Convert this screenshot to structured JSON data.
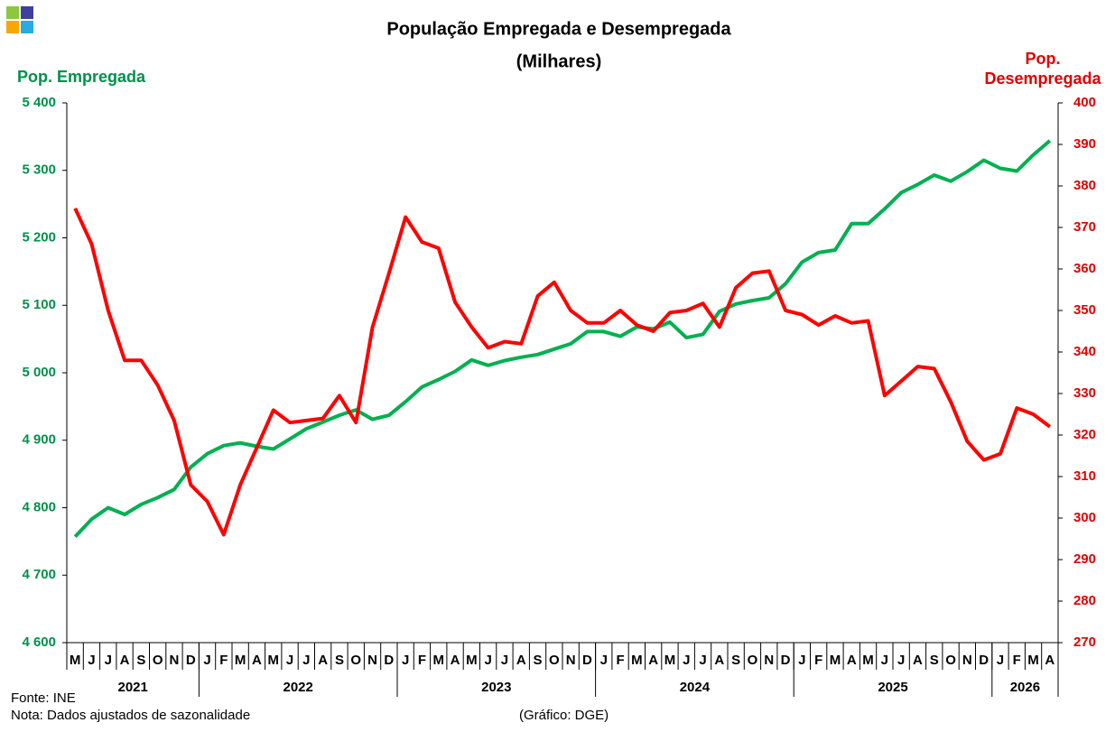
{
  "chart_data": {
    "type": "line",
    "title": "População Empregada e Desempregada",
    "subtitle": "(Milhares)",
    "ylabel": "Pop. Empregada",
    "y2label": "Pop. Desempregada",
    "categories": [
      "M",
      "J",
      "J",
      "A",
      "S",
      "O",
      "N",
      "D",
      "J",
      "F",
      "M",
      "A",
      "M",
      "J",
      "J",
      "A",
      "S",
      "O",
      "N",
      "D",
      "J",
      "F",
      "M",
      "A",
      "M",
      "J",
      "J",
      "A",
      "S",
      "O",
      "N",
      "D",
      "J",
      "F",
      "M",
      "A",
      "M",
      "J",
      "J",
      "A",
      "S",
      "O",
      "N",
      "D",
      "J",
      "F",
      "M",
      "A",
      "M",
      "J",
      "J",
      "A",
      "S",
      "O",
      "N",
      "D",
      "J",
      "F",
      "M",
      "A"
    ],
    "years": [
      "2021",
      "2022",
      "2023",
      "2024",
      "2025",
      "2026"
    ],
    "series": [
      {
        "name": "Pop. Empregada",
        "color": "#00b050",
        "axis": "y",
        "values": [
          4757,
          4783,
          4800,
          4790,
          4805,
          4815,
          4827,
          4860,
          4880,
          4892,
          4896,
          4891,
          4887,
          4902,
          4917,
          4927,
          4937,
          4945,
          4931,
          4937,
          4957,
          4979,
          4990,
          5002,
          5019,
          5011,
          5018,
          5023,
          5027,
          5035,
          5043,
          5061,
          5061,
          5054,
          5068,
          5065,
          5075,
          5052,
          5057,
          5091,
          5102,
          5107,
          5111,
          5132,
          5164,
          5178,
          5182,
          5221,
          5221,
          5243,
          5267,
          5279,
          5293,
          5284,
          5298,
          5315,
          5303,
          5299,
          5323,
          5344
        ]
      },
      {
        "name": "Pop. Desempregada",
        "color": "#ff0000",
        "axis": "y2",
        "values": [
          374.6,
          366,
          350,
          338,
          338,
          332,
          323.5,
          308,
          304,
          296,
          308,
          317,
          326,
          323,
          323.5,
          324,
          329.5,
          323,
          346,
          359,
          372.5,
          366.5,
          365,
          352,
          346,
          341,
          342.5,
          342,
          353.5,
          356.8,
          350,
          347,
          347,
          350,
          346.5,
          345,
          349.5,
          350,
          351.7,
          346,
          355.5,
          359,
          359.5,
          350,
          349,
          346.5,
          348.7,
          347,
          347.5,
          329.5,
          333,
          336.5,
          336,
          328,
          318.5,
          314,
          315.5,
          326.5,
          325,
          322
        ]
      }
    ],
    "ylim": [
      4600,
      5400
    ],
    "yticks": [
      {
        "value": 4600,
        "label": "4 600"
      },
      {
        "value": 4700,
        "label": "4 700"
      },
      {
        "value": 4800,
        "label": "4 800"
      },
      {
        "value": 4900,
        "label": "4 900"
      },
      {
        "value": 5000,
        "label": "5 000"
      },
      {
        "value": 5100,
        "label": "5 100"
      },
      {
        "value": 5200,
        "label": "5 200"
      },
      {
        "value": 5300,
        "label": "5 300"
      },
      {
        "value": 5400,
        "label": "5 400"
      }
    ],
    "y2lim": [
      270,
      400
    ],
    "y2ticks": [
      270,
      280,
      290,
      300,
      310,
      320,
      330,
      340,
      350,
      360,
      370,
      380,
      390,
      400
    ],
    "grid": false,
    "notes": [
      "Fonte: INE",
      "Nota: Dados ajustados de sazonalidade"
    ],
    "credit": "(Gráfico: DGE)"
  }
}
